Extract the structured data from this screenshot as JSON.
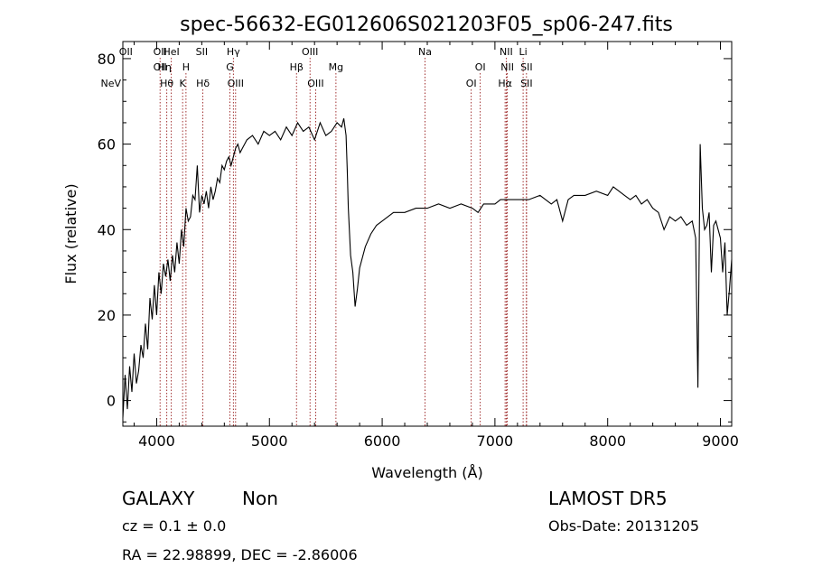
{
  "chart_data": {
    "type": "line",
    "title": "spec-56632-EG012606S021203F05_sp06-247.fits",
    "xlabel": "Wavelength (Å)",
    "ylabel": "Flux (relative)",
    "xlim": [
      3700,
      9100
    ],
    "ylim": [
      -6,
      84
    ],
    "x_ticks": [
      4000,
      5000,
      6000,
      7000,
      8000,
      9000
    ],
    "y_ticks": [
      0,
      20,
      40,
      60,
      80
    ],
    "line_color": "#000000",
    "marker_color": "#8b0000",
    "series": [
      {
        "x": [
          3700,
          3720,
          3740,
          3760,
          3780,
          3800,
          3820,
          3840,
          3860,
          3880,
          3900,
          3920,
          3940,
          3960,
          3980,
          4000,
          4020,
          4040,
          4060,
          4080,
          4100,
          4120,
          4140,
          4160,
          4180,
          4200,
          4220,
          4240,
          4260,
          4280,
          4300,
          4320,
          4340,
          4360,
          4380,
          4400,
          4420,
          4440,
          4460,
          4480,
          4500,
          4520,
          4540,
          4560,
          4580,
          4600,
          4620,
          4640,
          4660,
          4680,
          4700,
          4720,
          4740,
          4760,
          4780,
          4800,
          4850,
          4900,
          4950,
          5000,
          5050,
          5100,
          5150,
          5200,
          5250,
          5300,
          5350,
          5400,
          5450,
          5500,
          5550,
          5600,
          5640,
          5660,
          5680,
          5690,
          5700,
          5720,
          5740,
          5760,
          5780,
          5800,
          5850,
          5900,
          5950,
          6000,
          6100,
          6200,
          6300,
          6400,
          6500,
          6600,
          6700,
          6800,
          6850,
          6900,
          7000,
          7050,
          7100,
          7200,
          7300,
          7400,
          7500,
          7550,
          7600,
          7650,
          7700,
          7800,
          7900,
          8000,
          8050,
          8100,
          8150,
          8200,
          8250,
          8300,
          8350,
          8400,
          8450,
          8500,
          8550,
          8600,
          8650,
          8700,
          8750,
          8780,
          8800,
          8820,
          8840,
          8860,
          8880,
          8900,
          8920,
          8940,
          8960,
          8980,
          9000,
          9020,
          9040,
          9060,
          9080,
          9100
        ],
        "y": [
          -4,
          6,
          -2,
          8,
          2,
          11,
          4,
          7,
          13,
          10,
          18,
          12,
          24,
          19,
          27,
          20,
          30,
          25,
          32,
          29,
          33,
          28,
          34,
          30,
          37,
          32,
          40,
          36,
          45,
          42,
          43,
          48,
          47,
          55,
          44,
          48,
          46,
          49,
          45,
          50,
          47,
          49,
          52,
          51,
          55,
          54,
          56,
          57,
          55,
          57,
          59,
          60,
          58,
          59,
          60,
          61,
          62,
          60,
          63,
          62,
          63,
          61,
          64,
          62,
          65,
          63,
          64,
          61,
          65,
          62,
          63,
          65,
          64,
          66,
          62,
          54,
          45,
          34,
          30,
          22,
          26,
          31,
          36,
          39,
          41,
          42,
          44,
          44,
          45,
          45,
          46,
          45,
          46,
          45,
          44,
          46,
          46,
          47,
          47,
          47,
          47,
          48,
          46,
          47,
          42,
          47,
          48,
          48,
          49,
          48,
          50,
          49,
          48,
          47,
          48,
          46,
          47,
          45,
          44,
          40,
          43,
          42,
          43,
          41,
          42,
          38,
          3,
          60,
          45,
          40,
          41,
          44,
          30,
          41,
          42,
          40,
          38,
          30,
          37,
          20,
          26,
          33
        ]
      }
    ],
    "spectral_lines": [
      {
        "label": "NeV",
        "x": 3426,
        "row": 3,
        "line": false
      },
      {
        "label": "OII",
        "x": 3727,
        "row": 1,
        "line": false
      },
      {
        "label": "OII",
        "x": 4030,
        "row": 1,
        "line": true
      },
      {
        "label": "Hη",
        "x": 4070,
        "row": 2,
        "line": false
      },
      {
        "label": "OII",
        "x": 4030,
        "row": 2,
        "line": false
      },
      {
        "label": "Hθ",
        "x": 4090,
        "row": 3,
        "line": true
      },
      {
        "label": "HeI",
        "x": 4130,
        "row": 1,
        "line": true
      },
      {
        "label": "H",
        "x": 4260,
        "row": 2,
        "line": true
      },
      {
        "label": "K",
        "x": 4230,
        "row": 3,
        "line": true
      },
      {
        "label": "SII",
        "x": 4400,
        "row": 1,
        "line": false
      },
      {
        "label": "Hδ",
        "x": 4410,
        "row": 3,
        "line": true
      },
      {
        "label": "Hγ",
        "x": 4680,
        "row": 1,
        "line": true
      },
      {
        "label": "G",
        "x": 4650,
        "row": 2,
        "line": true
      },
      {
        "label": "OIII",
        "x": 4700,
        "row": 3,
        "line": true
      },
      {
        "label": "OIII",
        "x": 5360,
        "row": 1,
        "line": true
      },
      {
        "label": "Hβ",
        "x": 5240,
        "row": 2,
        "line": true
      },
      {
        "label": "OIII",
        "x": 5410,
        "row": 3,
        "line": true
      },
      {
        "label": "Mg",
        "x": 5590,
        "row": 2,
        "line": true
      },
      {
        "label": "Na",
        "x": 6380,
        "row": 1,
        "line": true
      },
      {
        "label": "OI",
        "x": 6870,
        "row": 2,
        "line": true
      },
      {
        "label": "OI",
        "x": 6790,
        "row": 3,
        "line": true
      },
      {
        "label": "NII",
        "x": 7100,
        "row": 1,
        "line": true
      },
      {
        "label": "NII",
        "x": 7110,
        "row": 2,
        "line": true
      },
      {
        "label": "Hα",
        "x": 7090,
        "row": 3,
        "line": true
      },
      {
        "label": "Li",
        "x": 7250,
        "row": 1,
        "line": true
      },
      {
        "label": "SII",
        "x": 7280,
        "row": 2,
        "line": true
      },
      {
        "label": "SII",
        "x": 7280,
        "row": 3,
        "line": true
      }
    ]
  },
  "info": {
    "class": "GALAXY",
    "subclass": "Non",
    "cz": "cz = 0.1 ± 0.0",
    "radec": "RA =  22.98899, DEC =  -2.86006",
    "survey": "LAMOST DR5",
    "obsdate": "Obs-Date: 20131205"
  }
}
